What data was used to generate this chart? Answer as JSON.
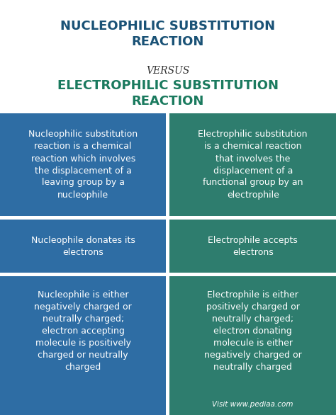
{
  "title1": "NUCLEOPHILIC SUBSTITUTION\nREACTION",
  "versus": "VERSUS",
  "title2": "ELECTROPHILIC SUBSTITUTION\nREACTION",
  "title1_color": "#1a5276",
  "versus_color": "#333333",
  "title2_color": "#1a7a5e",
  "bg_color": "#ffffff",
  "left_color": "#2e6da4",
  "right_color": "#2e7d6e",
  "divider_color": "#ffffff",
  "text_color": "#ffffff",
  "watermark_color": "#2e7d6e",
  "watermark": "Visit www.pediaa.com",
  "left_texts": [
    "Nucleophilic substitution\nreaction is a chemical\nreaction which involves\nthe displacement of a\nleaving group by a\nnucleophile",
    "Nucleophile donates its\nelectrons",
    "Nucleophile is either\nnegatively charged or\nneutrally charged;\nelectron accepting\nmolecule is positively\ncharged or neutrally\ncharged"
  ],
  "right_texts": [
    "Electrophilic substitution\nis a chemical reaction\nthat involves the\ndisplacement of a\nfunctional group by an\nelectrophile",
    "Electrophile accepts\nelectrons",
    "Electrophile is either\npositively charged or\nneutrally charged;\nelectron donating\nmolecule is either\nnegatively charged or\nneutrally charged"
  ]
}
